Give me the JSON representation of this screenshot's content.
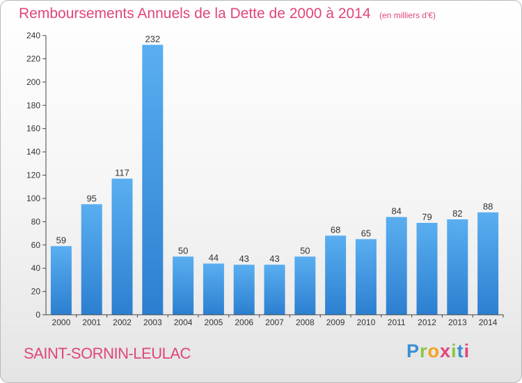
{
  "chart_data": {
    "type": "bar",
    "title": "Remboursements Annuels de la Dette de 2000 à 2014",
    "unit_note": "(en milliers d'€)",
    "categories": [
      "2000",
      "2001",
      "2002",
      "2003",
      "2004",
      "2005",
      "2006",
      "2007",
      "2008",
      "2009",
      "2010",
      "2011",
      "2012",
      "2013",
      "2014"
    ],
    "values": [
      59,
      95,
      117,
      232,
      50,
      44,
      43,
      43,
      50,
      68,
      65,
      84,
      79,
      82,
      88
    ],
    "data_labels": [
      "59",
      "95",
      "117",
      "232",
      "50",
      "44",
      "43",
      "43",
      "50",
      "68",
      "65",
      "84",
      "79",
      "82",
      "88"
    ],
    "yticks": [
      0,
      20,
      40,
      60,
      80,
      100,
      120,
      140,
      160,
      180,
      200,
      220,
      240
    ],
    "ylim": [
      0,
      240
    ],
    "grid": false,
    "xlabel": "",
    "ylabel": "",
    "colors": {
      "bar_light": "#5aaef0",
      "bar_dark": "#2c7fd0",
      "title": "#e0457b"
    }
  },
  "location": "SAINT-SORNIN-LEULAC",
  "brand": {
    "letters": [
      "P",
      "r",
      "o",
      "x",
      "i",
      "t",
      "i"
    ],
    "colors": [
      "#3a8fd6",
      "#8cc63e",
      "#f4a21e",
      "#e0457b",
      "#8cc63e",
      "#3a8fd6",
      "#e0457b"
    ]
  }
}
